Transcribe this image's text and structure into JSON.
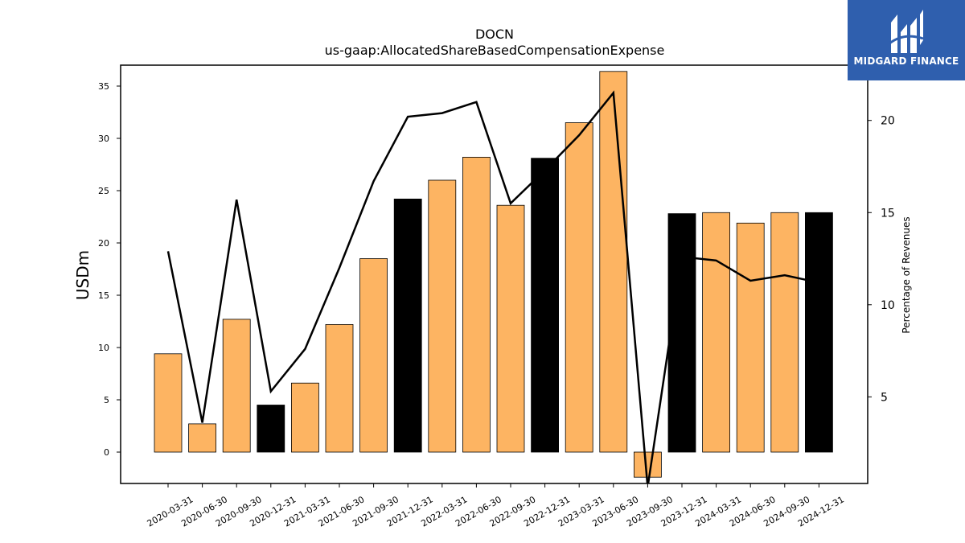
{
  "chart_data": {
    "type": "bar",
    "title": "DOCN",
    "subtitle": "us-gaap:AllocatedShareBasedCompensationExpense",
    "ylabel": "USDm",
    "y2label": "Percentage of Revenues",
    "ylim": [
      -3.0,
      37.0
    ],
    "y2lim": [
      0.3,
      23.0
    ],
    "yticks": [
      0,
      5,
      10,
      15,
      20,
      25,
      30,
      35
    ],
    "y2ticks": [
      5,
      10,
      15,
      20
    ],
    "categories": [
      "2020-03-31",
      "2020-06-30",
      "2020-09-30",
      "2020-12-31",
      "2021-03-31",
      "2021-06-30",
      "2021-09-30",
      "2021-12-31",
      "2022-03-31",
      "2022-06-30",
      "2022-09-30",
      "2022-12-31",
      "2023-03-31",
      "2023-06-30",
      "2023-09-30",
      "2023-12-31",
      "2024-03-31",
      "2024-06-30",
      "2024-09-30",
      "2024-12-31"
    ],
    "series": [
      {
        "axis": "left",
        "kind": "bar",
        "values": [
          9.4,
          2.7,
          12.7,
          4.5,
          6.6,
          12.2,
          18.5,
          24.2,
          26.0,
          28.2,
          23.6,
          28.1,
          31.5,
          36.4,
          -2.4,
          22.8,
          22.9,
          21.9,
          22.9,
          22.9
        ],
        "highlight": [
          false,
          false,
          false,
          true,
          false,
          false,
          false,
          true,
          false,
          false,
          false,
          true,
          false,
          false,
          false,
          true,
          false,
          false,
          false,
          true
        ]
      },
      {
        "axis": "right",
        "kind": "line",
        "values": [
          12.9,
          3.6,
          15.7,
          5.3,
          7.6,
          12.0,
          16.7,
          20.2,
          20.4,
          21.0,
          15.5,
          17.3,
          19.2,
          21.5,
          0.1,
          12.6,
          12.4,
          11.3,
          11.6,
          11.2
        ]
      }
    ],
    "colors": {
      "bar": "#fdb462",
      "bar_highlight": "#000000",
      "line": "#000000",
      "edge": "#000000"
    }
  },
  "logo": {
    "text": "MIDGARD FINANCE",
    "background": "#2f5fae"
  }
}
